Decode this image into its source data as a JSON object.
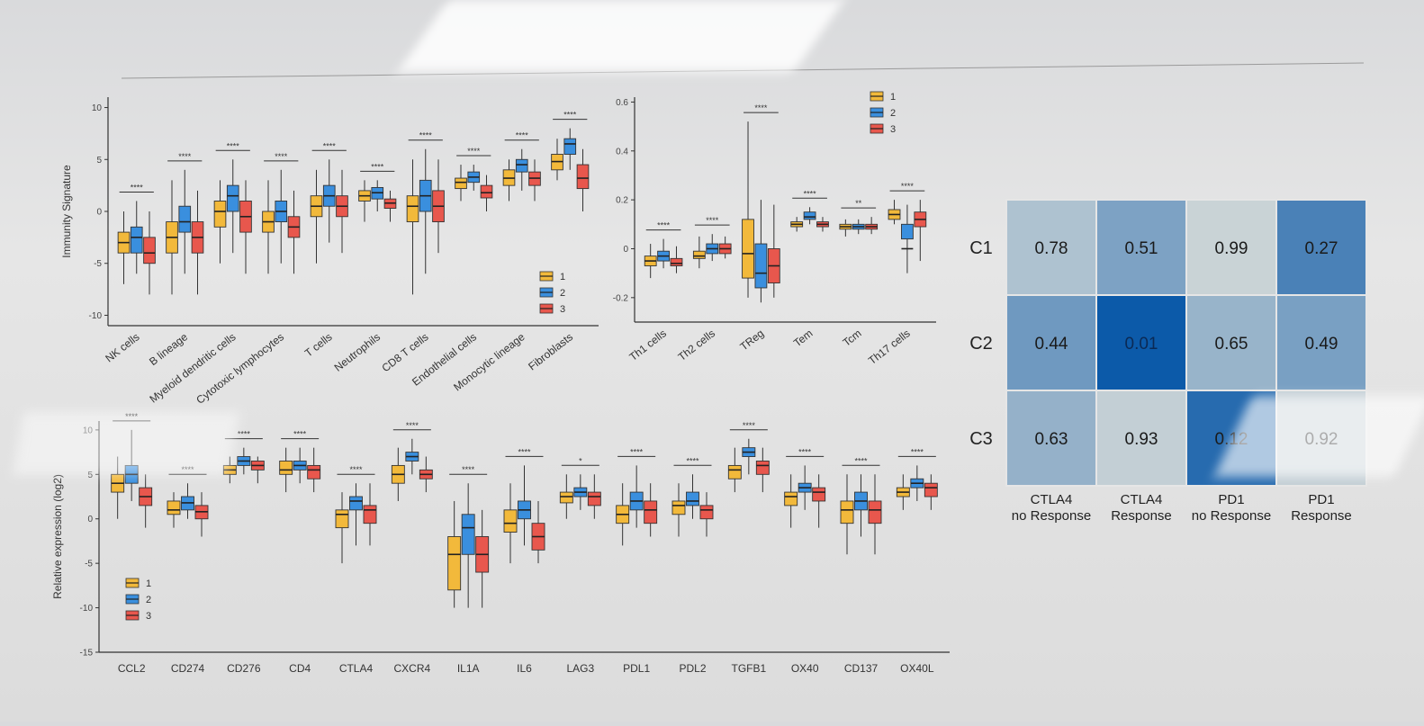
{
  "colors": {
    "group1": "#f2b93b",
    "group2": "#3a8fde",
    "group3": "#e8574d",
    "heat_low": "#c9d3d6",
    "heat_high": "#0a58a8"
  },
  "chart_data": [
    {
      "type": "boxplot",
      "id": "immunity",
      "ylabel": "Immunity Signature",
      "ylim": [
        -11,
        11
      ],
      "yticks": [
        -10,
        -5,
        0,
        5,
        10
      ],
      "legend": [
        "1",
        "2",
        "3"
      ],
      "legend_position": "bottom-right",
      "categories": [
        "NK cells",
        "B lineage",
        "Myeloid dendritic cells",
        "Cytotoxic lymphocytes",
        "T cells",
        "Neutrophils",
        "CD8 T cells",
        "Endothelial cells",
        "Monocytic lineage",
        "Fibroblasts"
      ],
      "significance": [
        "****",
        "****",
        "****",
        "****",
        "****",
        "****",
        "****",
        "****",
        "****",
        "****"
      ],
      "series": [
        {
          "name": "1",
          "boxes": [
            [
              -7,
              -4,
              -3,
              -2,
              0
            ],
            [
              -8,
              -4,
              -2.5,
              -1,
              3
            ],
            [
              -5,
              -1.5,
              0,
              1,
              3
            ],
            [
              -6,
              -2,
              -1,
              0,
              3
            ],
            [
              -5,
              -0.5,
              0.5,
              1.5,
              4
            ],
            [
              -1,
              1,
              1.5,
              2,
              3
            ],
            [
              -8,
              -1,
              0.5,
              1.5,
              5
            ],
            [
              1,
              2.2,
              2.8,
              3.2,
              4.5
            ],
            [
              1,
              2.5,
              3.2,
              4,
              5
            ],
            [
              3,
              4,
              4.8,
              5.5,
              7
            ]
          ]
        },
        {
          "name": "2",
          "boxes": [
            [
              -6,
              -4,
              -2.5,
              -1.5,
              1
            ],
            [
              -6,
              -2,
              -1,
              0.5,
              4
            ],
            [
              -4,
              0,
              1.5,
              2.5,
              5
            ],
            [
              -5,
              -1,
              0,
              1,
              4
            ],
            [
              -3,
              0.5,
              1.5,
              2.5,
              5
            ],
            [
              0,
              1.2,
              1.8,
              2.3,
              3
            ],
            [
              -6,
              0,
              1.5,
              3,
              6
            ],
            [
              2,
              2.8,
              3.3,
              3.8,
              4.5
            ],
            [
              2,
              3.8,
              4.5,
              5,
              6
            ],
            [
              4,
              5.5,
              6.5,
              7,
              8
            ]
          ]
        },
        {
          "name": "3",
          "boxes": [
            [
              -8,
              -5,
              -4,
              -2.5,
              0
            ],
            [
              -8,
              -4,
              -2.5,
              -1,
              2
            ],
            [
              -6,
              -2,
              -0.5,
              1,
              3
            ],
            [
              -6,
              -2.5,
              -1.5,
              -0.5,
              2
            ],
            [
              -4,
              -0.5,
              0.5,
              1.5,
              4
            ],
            [
              -1,
              0.3,
              0.8,
              1.2,
              2
            ],
            [
              -4,
              -1,
              0.5,
              2,
              5
            ],
            [
              0,
              1.3,
              1.8,
              2.5,
              3.5
            ],
            [
              1,
              2.5,
              3.2,
              3.8,
              5
            ],
            [
              0,
              2.2,
              3.2,
              4.5,
              6
            ]
          ]
        }
      ]
    },
    {
      "type": "boxplot",
      "id": "t-subsets",
      "ylim": [
        -0.3,
        0.62
      ],
      "yticks": [
        -0.2,
        0.0,
        0.2,
        0.4,
        0.6
      ],
      "legend": [
        "1",
        "2",
        "3"
      ],
      "legend_position": "top-right",
      "categories": [
        "Th1 cells",
        "Th2 cells",
        "TReg",
        "Tem",
        "Tcm",
        "Th17 cells"
      ],
      "significance": [
        "****",
        "****",
        "****",
        "****",
        "**",
        "****"
      ],
      "series": [
        {
          "name": "1",
          "boxes": [
            [
              -0.12,
              -0.07,
              -0.05,
              -0.03,
              0.02
            ],
            [
              -0.08,
              -0.04,
              -0.03,
              -0.01,
              0.05
            ],
            [
              -0.2,
              -0.12,
              -0.02,
              0.12,
              0.52
            ],
            [
              0.07,
              0.09,
              0.1,
              0.11,
              0.13
            ],
            [
              0.05,
              0.08,
              0.09,
              0.1,
              0.12
            ],
            [
              0.1,
              0.12,
              0.14,
              0.16,
              0.2
            ]
          ]
        },
        {
          "name": "2",
          "boxes": [
            [
              -0.08,
              -0.05,
              -0.03,
              -0.01,
              0.04
            ],
            [
              -0.05,
              -0.02,
              0.0,
              0.02,
              0.06
            ],
            [
              -0.22,
              -0.16,
              -0.1,
              0.02,
              0.2
            ],
            [
              0.1,
              0.12,
              0.13,
              0.15,
              0.17
            ],
            [
              0.06,
              0.08,
              0.09,
              0.1,
              0.12
            ],
            [
              -0.1,
              0.04,
              0.0,
              0.1,
              0.18
            ]
          ]
        },
        {
          "name": "3",
          "boxes": [
            [
              -0.1,
              -0.07,
              -0.06,
              -0.04,
              0.01
            ],
            [
              -0.04,
              -0.02,
              0.0,
              0.02,
              0.05
            ],
            [
              -0.2,
              -0.14,
              -0.07,
              0.0,
              0.18
            ],
            [
              0.07,
              0.09,
              0.1,
              0.11,
              0.13
            ],
            [
              0.06,
              0.08,
              0.09,
              0.1,
              0.13
            ],
            [
              -0.05,
              0.09,
              0.12,
              0.15,
              0.2
            ]
          ]
        }
      ]
    },
    {
      "type": "boxplot",
      "id": "expression",
      "ylabel": "Relative expression (log2)",
      "ylim": [
        -15,
        11
      ],
      "yticks": [
        -15,
        -10,
        -5,
        0,
        5,
        10
      ],
      "legend": [
        "1",
        "2",
        "3"
      ],
      "legend_position": "bottom-left",
      "categories": [
        "CCL2",
        "CD274",
        "CD276",
        "CD4",
        "CTLA4",
        "CXCR4",
        "IL1A",
        "IL6",
        "LAG3",
        "PDL1",
        "PDL2",
        "TGFB1",
        "OX40",
        "CD137",
        "OX40L"
      ],
      "significance": [
        "****",
        "****",
        "****",
        "****",
        "****",
        "****",
        "****",
        "****",
        "*",
        "****",
        "****",
        "****",
        "****",
        "****",
        "****"
      ],
      "series": [
        {
          "name": "1",
          "boxes": [
            [
              0,
              3,
              4,
              5,
              7
            ],
            [
              -1,
              0.5,
              1,
              2,
              3
            ],
            [
              4,
              5,
              5.5,
              6,
              7
            ],
            [
              3,
              5,
              5.5,
              6.5,
              8
            ],
            [
              -5,
              -1,
              0.5,
              1,
              3
            ],
            [
              2,
              4,
              5,
              6,
              8
            ],
            [
              -10,
              -8,
              -4,
              -2,
              2
            ],
            [
              -5,
              -1.5,
              -0.5,
              1,
              4
            ],
            [
              0,
              1.8,
              2.5,
              3,
              5
            ],
            [
              -3,
              -0.5,
              0.5,
              1.5,
              4
            ],
            [
              -2,
              0.5,
              1.5,
              2,
              4
            ],
            [
              3,
              4.5,
              5.5,
              6,
              8
            ],
            [
              -1,
              1.5,
              2.5,
              3,
              5
            ],
            [
              -4,
              -0.5,
              1,
              2,
              5
            ],
            [
              1,
              2.5,
              3,
              3.5,
              5
            ]
          ]
        },
        {
          "name": "2",
          "boxes": [
            [
              2,
              4,
              5,
              6,
              10
            ],
            [
              0,
              1,
              1.8,
              2.5,
              4
            ],
            [
              5,
              6,
              6.5,
              7,
              8
            ],
            [
              4,
              5.5,
              6,
              6.5,
              8
            ],
            [
              -3,
              1,
              2,
              2.5,
              4
            ],
            [
              5,
              6.5,
              7,
              7.5,
              9
            ],
            [
              -10,
              -4,
              -1,
              0.5,
              4
            ],
            [
              -3,
              0,
              1,
              2,
              6
            ],
            [
              1,
              2.5,
              3,
              3.5,
              5
            ],
            [
              -1,
              1,
              2,
              3,
              6
            ],
            [
              0,
              1.5,
              2,
              3,
              5
            ],
            [
              5,
              7,
              7.5,
              8,
              9
            ],
            [
              1,
              3,
              3.5,
              4,
              6
            ],
            [
              -2,
              1,
              2,
              3,
              5
            ],
            [
              2,
              3.5,
              4,
              4.5,
              6
            ]
          ]
        },
        {
          "name": "3",
          "boxes": [
            [
              -1,
              1.5,
              2.5,
              3.5,
              5
            ],
            [
              -2,
              0,
              0.8,
              1.5,
              3
            ],
            [
              4,
              5.5,
              6,
              6.5,
              7
            ],
            [
              3,
              4.5,
              5.5,
              6,
              8
            ],
            [
              -3,
              -0.5,
              1,
              1.5,
              4
            ],
            [
              3,
              4.5,
              5,
              5.5,
              7
            ],
            [
              -10,
              -6,
              -4,
              -2,
              1
            ],
            [
              -5,
              -3.5,
              -2,
              -0.5,
              2
            ],
            [
              0,
              1.5,
              2.5,
              3,
              5
            ],
            [
              -2,
              -0.5,
              1,
              2,
              4
            ],
            [
              -2,
              0,
              1,
              1.5,
              3
            ],
            [
              3,
              5,
              6,
              6.5,
              8
            ],
            [
              -1,
              2,
              3,
              3.5,
              5
            ],
            [
              -4,
              -0.5,
              1,
              2,
              5
            ],
            [
              1,
              2.5,
              3.5,
              4,
              5
            ]
          ]
        }
      ]
    },
    {
      "type": "heatmap",
      "id": "response",
      "rows": [
        "C1",
        "C2",
        "C3"
      ],
      "cols": [
        "CTLA4\nno Response",
        "CTLA4\nResponse",
        "PD1\nno Response",
        "PD1\nResponse"
      ],
      "values": [
        [
          0.78,
          0.51,
          0.99,
          0.27
        ],
        [
          0.44,
          0.01,
          0.65,
          0.49
        ],
        [
          0.63,
          0.93,
          0.12,
          0.92
        ]
      ],
      "labels": [
        [
          "0.78",
          "0.51",
          "0.99",
          "0.27"
        ],
        [
          "0.44",
          "0.01",
          "0.65",
          "0.49"
        ],
        [
          "0.63",
          "0.93",
          "0.12",
          "0.92"
        ]
      ]
    }
  ]
}
